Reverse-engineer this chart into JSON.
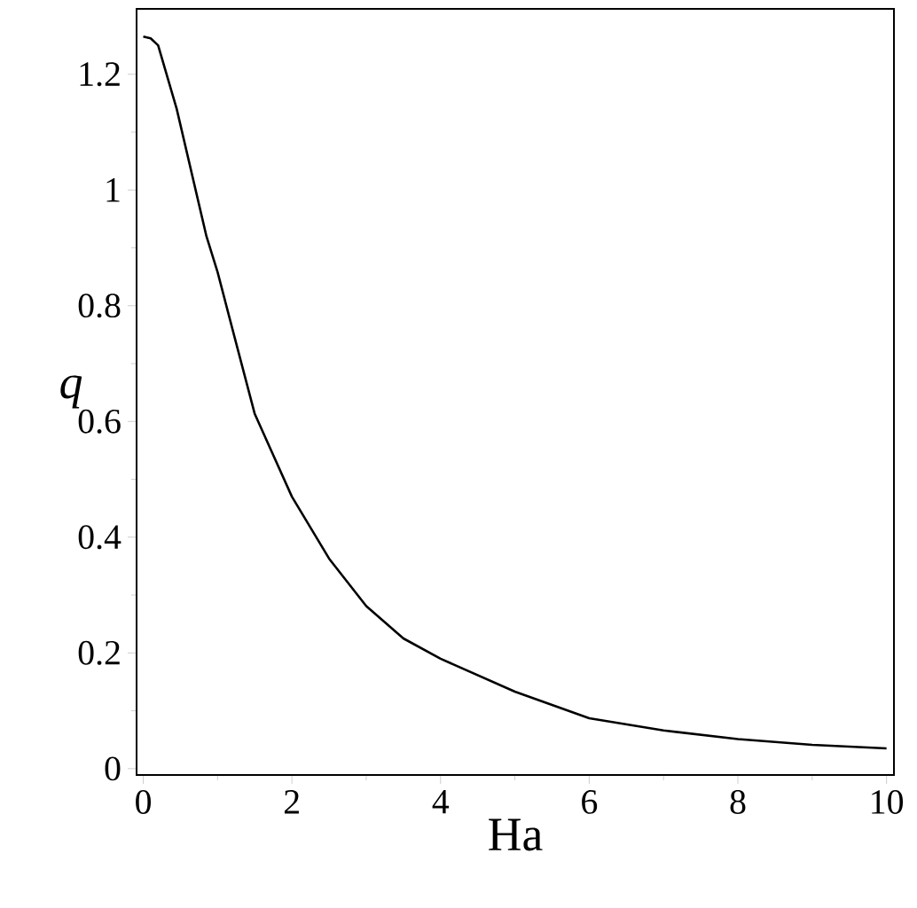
{
  "chart_data": {
    "type": "line",
    "xlabel": "Ha",
    "ylabel": "q",
    "xlim": [
      -0.09,
      10.1
    ],
    "ylim": [
      -0.011,
      1.313
    ],
    "xticks": [
      0,
      2,
      4,
      6,
      8,
      10
    ],
    "yticks": [
      0,
      0.2,
      0.4,
      0.6,
      0.8,
      1,
      1.2
    ],
    "grid": false,
    "marker": "none",
    "line_style": "solid",
    "series": [
      {
        "color": "#000000",
        "x": [
          0,
          0.1,
          0.2,
          0.45,
          0.85,
          1,
          1.25,
          1.5,
          2,
          2.5,
          3,
          3.5,
          4,
          5,
          6,
          7,
          8,
          9,
          10
        ],
        "values": [
          1.265,
          1.262,
          1.25,
          1.14,
          0.92,
          0.858,
          0.735,
          0.613,
          0.47,
          0.363,
          0.281,
          0.225,
          0.19,
          0.133,
          0.087,
          0.066,
          0.051,
          0.041,
          0.035
        ]
      }
    ]
  }
}
